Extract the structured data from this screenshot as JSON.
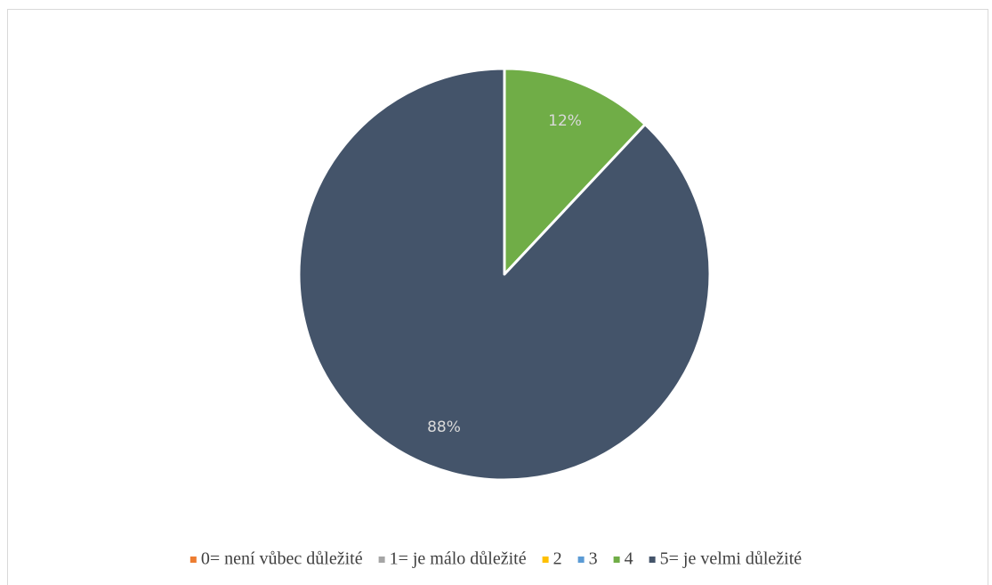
{
  "chart_data": {
    "type": "pie",
    "categories": [
      "0= není vůbec důležité",
      "1= je málo důležité",
      "2",
      "3",
      "4",
      "5= je velmi důležité"
    ],
    "values": [
      0,
      0,
      0,
      0,
      12,
      88
    ],
    "value_labels": [
      null,
      null,
      null,
      null,
      "12%",
      "88%"
    ],
    "colors": [
      "#ed7d31",
      "#a5a5a5",
      "#ffc000",
      "#5b9bd5",
      "#70ad47",
      "#44546a"
    ],
    "legend": "bottom"
  }
}
